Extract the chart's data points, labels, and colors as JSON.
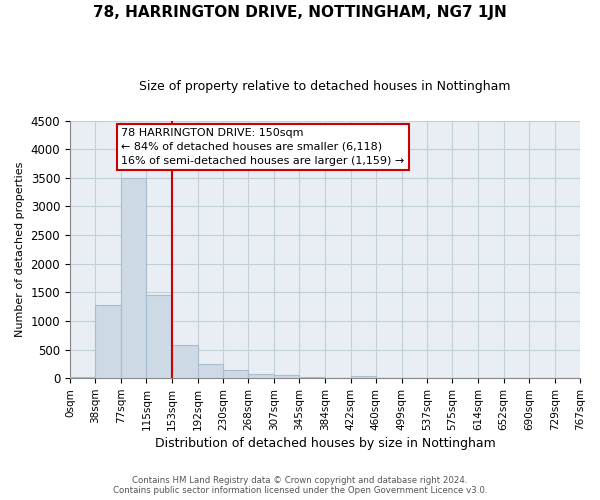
{
  "title": "78, HARRINGTON DRIVE, NOTTINGHAM, NG7 1JN",
  "subtitle": "Size of property relative to detached houses in Nottingham",
  "xlabel": "Distribution of detached houses by size in Nottingham",
  "ylabel": "Number of detached properties",
  "bar_color": "#cdd9e5",
  "bar_edgecolor": "#a8bdd0",
  "vline_x": 153,
  "vline_color": "#cc0000",
  "bin_edges": [
    0,
    38,
    77,
    115,
    153,
    192,
    230,
    268,
    307,
    345,
    384,
    422,
    460,
    499,
    537,
    575,
    614,
    652,
    690,
    729,
    767
  ],
  "bar_heights": [
    25,
    1280,
    3500,
    1460,
    580,
    250,
    150,
    80,
    50,
    20,
    5,
    35,
    5,
    0,
    0,
    0,
    0,
    0,
    0,
    0
  ],
  "ylim": [
    0,
    4500
  ],
  "yticks": [
    0,
    500,
    1000,
    1500,
    2000,
    2500,
    3000,
    3500,
    4000,
    4500
  ],
  "annotation_line1": "78 HARRINGTON DRIVE: 150sqm",
  "annotation_line2": "← 84% of detached houses are smaller (6,118)",
  "annotation_line3": "16% of semi-detached houses are larger (1,159) →",
  "annotation_box_color": "#ffffff",
  "annotation_box_edgecolor": "#cc0000",
  "footer_text": "Contains HM Land Registry data © Crown copyright and database right 2024.\nContains public sector information licensed under the Open Government Licence v3.0.",
  "background_color": "#ffffff",
  "plot_bg_color": "#e8eef4",
  "grid_color": "#c0cfd8",
  "fig_width": 6.0,
  "fig_height": 5.0,
  "title_fontsize": 11,
  "subtitle_fontsize": 9
}
